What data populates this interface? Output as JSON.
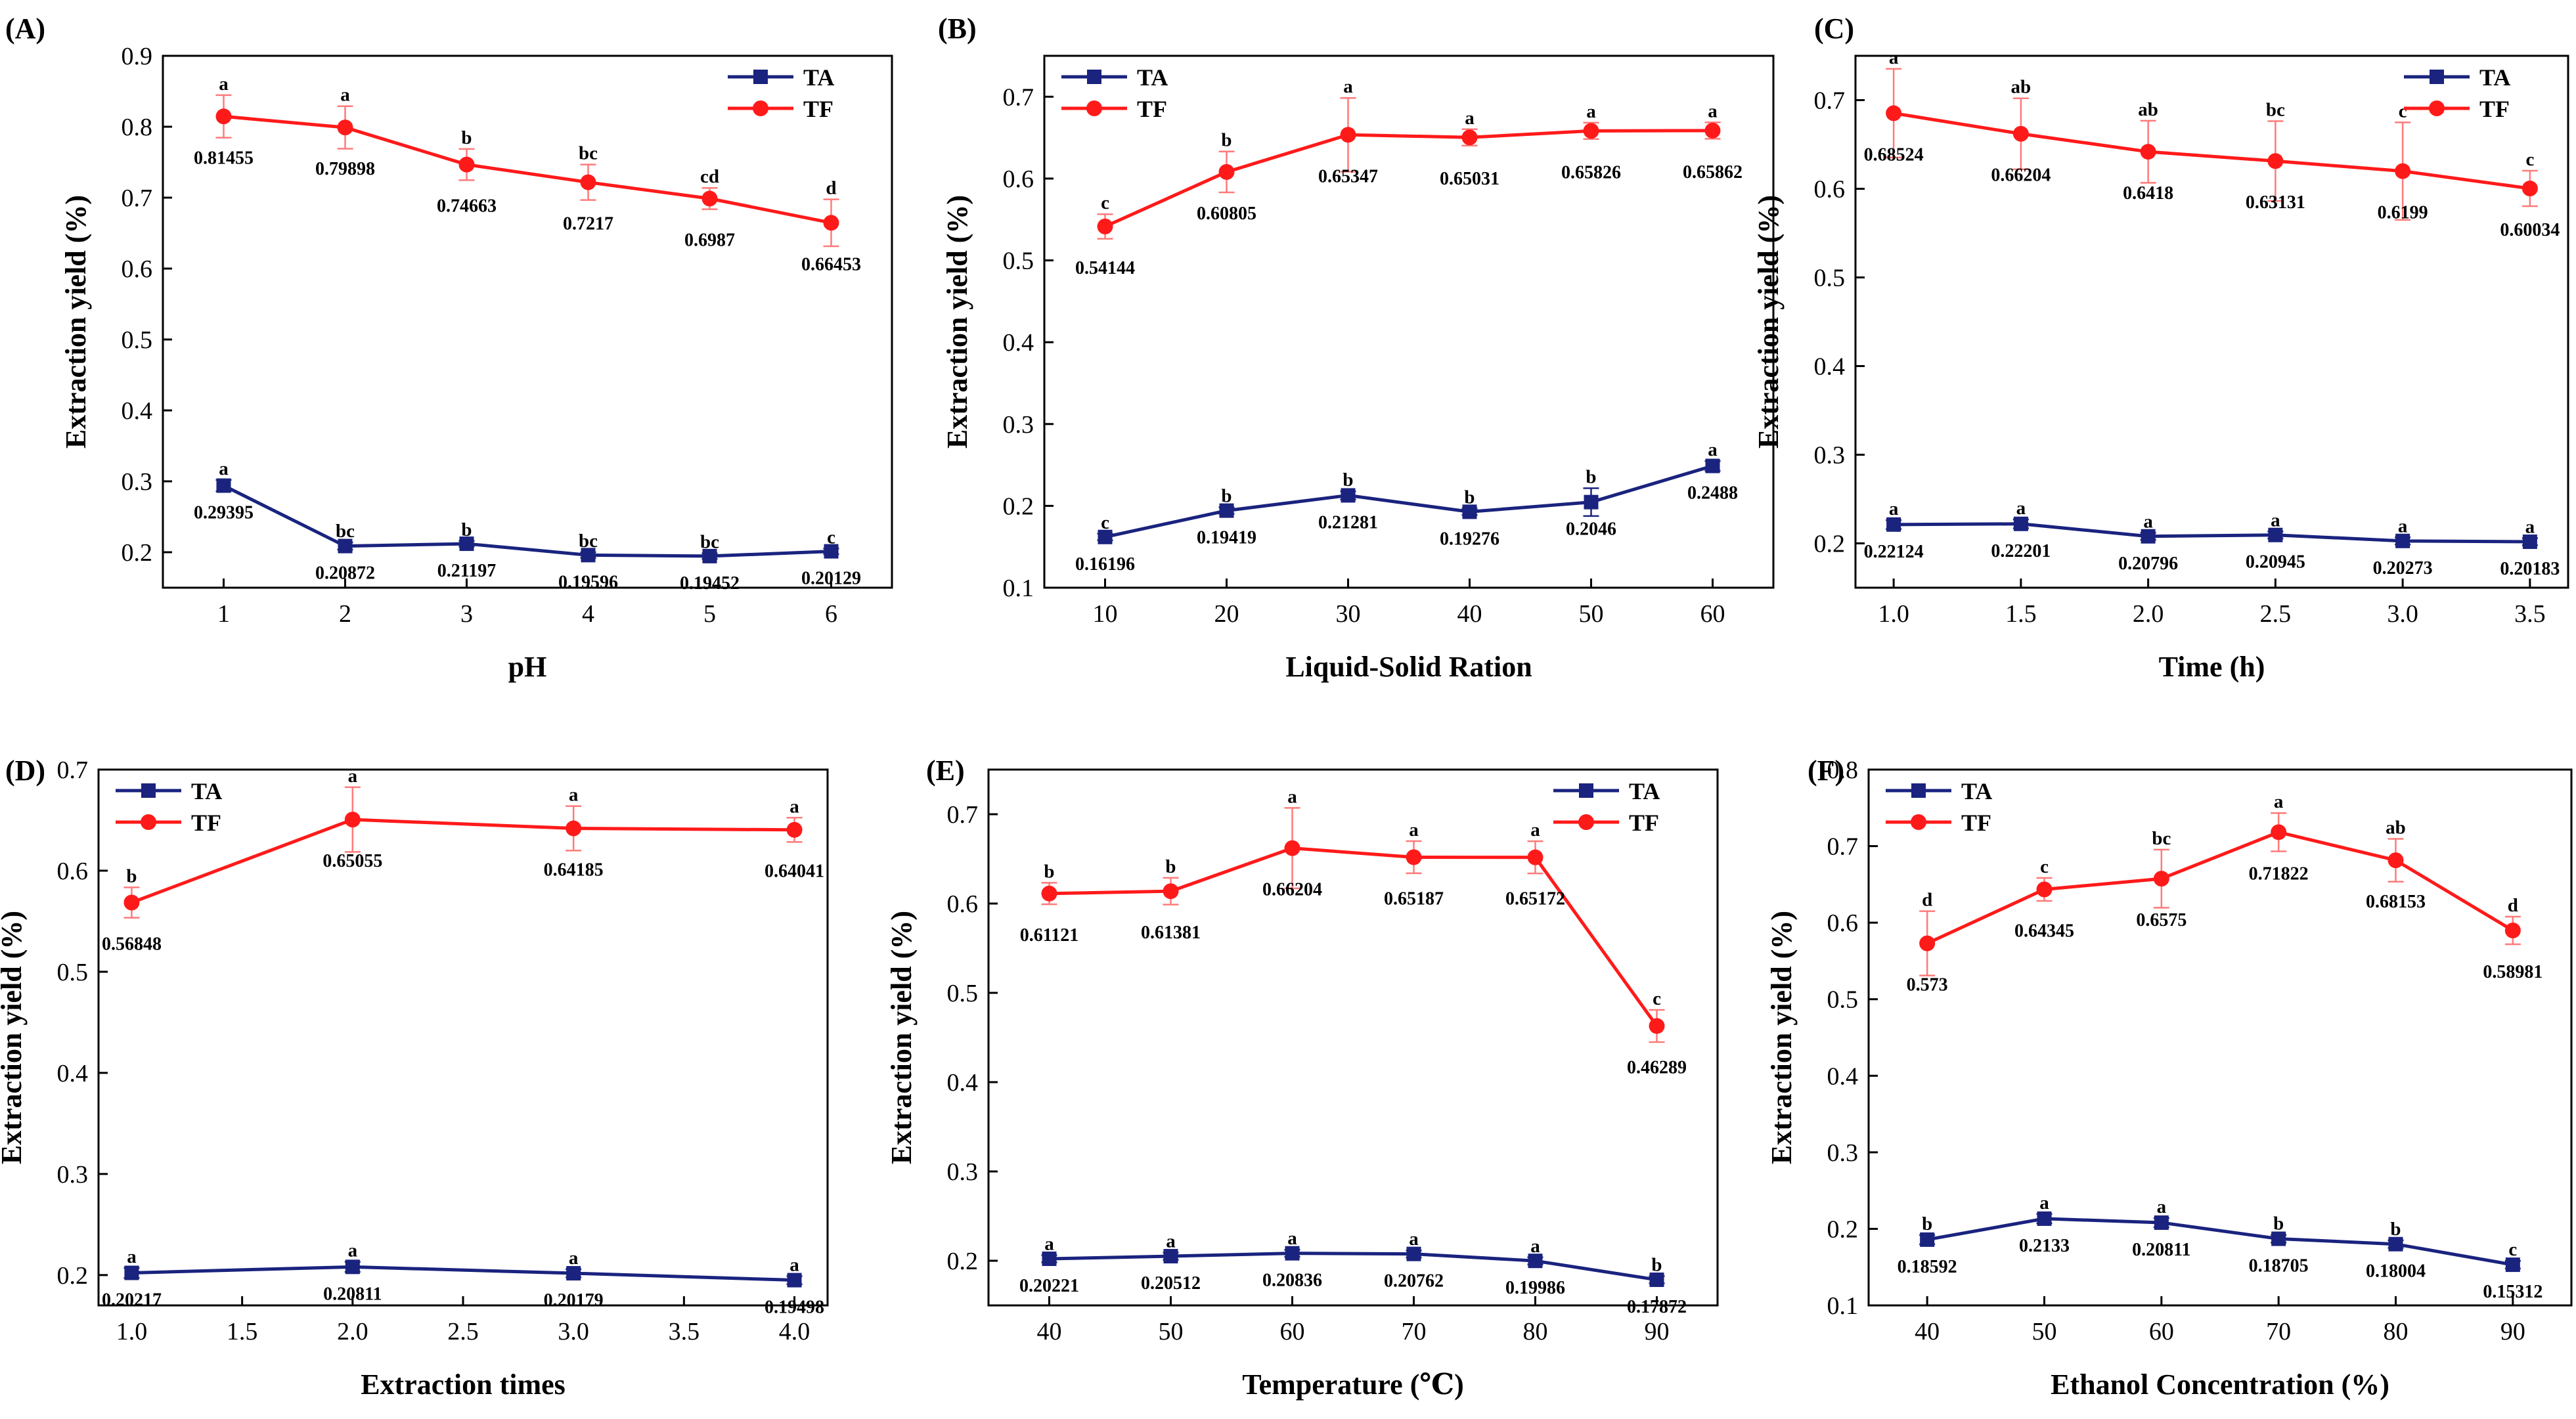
{
  "colors": {
    "TA": "#1a237e",
    "TF": "#ff1a1a",
    "TF_err": "#ff7a7a",
    "TA_err": "#1a237e",
    "axis": "#000000"
  },
  "chart_data": [
    {
      "type": "line",
      "panel": "(A)",
      "xlabel": "pH",
      "ylabel": "Extraction yield (%)",
      "xlim": [
        0.5,
        6.5
      ],
      "ylim": [
        0.15,
        0.9
      ],
      "xticks": [
        1,
        2,
        3,
        4,
        5,
        6
      ],
      "xtick_labels": [
        "1",
        "2",
        "3",
        "4",
        "5",
        "6"
      ],
      "yticks": [
        0.2,
        0.3,
        0.4,
        0.5,
        0.6,
        0.7,
        0.8,
        0.9
      ],
      "ytick_labels": [
        "0.2",
        "0.3",
        "0.4",
        "0.5",
        "0.6",
        "0.7",
        "0.8",
        "0.9"
      ],
      "legend": "top-right",
      "x": [
        1,
        2,
        3,
        4,
        5,
        6
      ],
      "series": [
        {
          "name": "TA",
          "values": [
            0.29395,
            0.20872,
            0.21197,
            0.19596,
            0.19452,
            0.20129
          ],
          "errors": [
            0.008,
            0.005,
            0.004,
            0.004,
            0.004,
            0.004
          ],
          "labels": [
            "0.29395",
            "0.20872",
            "0.21197",
            "0.19596",
            "0.19452",
            "0.20129"
          ],
          "letters": [
            "a",
            "bc",
            "b",
            "bc",
            "bc",
            "c"
          ]
        },
        {
          "name": "TF",
          "values": [
            0.81455,
            0.79898,
            0.74663,
            0.7217,
            0.6987,
            0.66453
          ],
          "errors": [
            0.03,
            0.03,
            0.022,
            0.025,
            0.015,
            0.033
          ],
          "labels": [
            "0.81455",
            "0.79898",
            "0.74663",
            "0.7217",
            "0.6987",
            "0.66453"
          ],
          "letters": [
            "a",
            "a",
            "b",
            "bc",
            "cd",
            "d"
          ]
        }
      ]
    },
    {
      "type": "line",
      "panel": "(B)",
      "xlabel": "Liquid-Solid Ration",
      "ylabel": "Extraction yield (%)",
      "xlim": [
        5,
        65
      ],
      "ylim": [
        0.1,
        0.75
      ],
      "xticks": [
        10,
        20,
        30,
        40,
        50,
        60
      ],
      "xtick_labels": [
        "10",
        "20",
        "30",
        "40",
        "50",
        "60"
      ],
      "yticks": [
        0.1,
        0.2,
        0.3,
        0.4,
        0.5,
        0.6,
        0.7
      ],
      "ytick_labels": [
        "0.1",
        "0.2",
        "0.3",
        "0.4",
        "0.5",
        "0.6",
        "0.7"
      ],
      "legend": "top-left",
      "x": [
        10,
        20,
        30,
        40,
        50,
        60
      ],
      "series": [
        {
          "name": "TA",
          "values": [
            0.16196,
            0.19419,
            0.21281,
            0.19276,
            0.2046,
            0.2488
          ],
          "errors": [
            0.004,
            0.004,
            0.005,
            0.004,
            0.017,
            0.006
          ],
          "labels": [
            "0.16196",
            "0.19419",
            "0.21281",
            "0.19276",
            "0.2046",
            "0.2488"
          ],
          "letters": [
            "c",
            "b",
            "b",
            "b",
            "b",
            "a"
          ]
        },
        {
          "name": "TF",
          "values": [
            0.54144,
            0.60805,
            0.65347,
            0.65031,
            0.65826,
            0.65862
          ],
          "errors": [
            0.015,
            0.025,
            0.045,
            0.01,
            0.01,
            0.01
          ],
          "labels": [
            "0.54144",
            "0.60805",
            "0.65347",
            "0.65031",
            "0.65826",
            "0.65862"
          ],
          "letters": [
            "c",
            "b",
            "a",
            "a",
            "a",
            "a"
          ]
        }
      ]
    },
    {
      "type": "line",
      "panel": "(C)",
      "xlabel": "Time (h)",
      "ylabel": "Extraction yield (%)",
      "xlim": [
        0.85,
        3.65
      ],
      "ylim": [
        0.15,
        0.75
      ],
      "xticks": [
        1.0,
        1.5,
        2.0,
        2.5,
        3.0,
        3.5
      ],
      "xtick_labels": [
        "1.0",
        "1.5",
        "2.0",
        "2.5",
        "3.0",
        "3.5"
      ],
      "yticks": [
        0.2,
        0.3,
        0.4,
        0.5,
        0.6,
        0.7
      ],
      "ytick_labels": [
        "0.2",
        "0.3",
        "0.4",
        "0.5",
        "0.6",
        "0.7"
      ],
      "legend": "top-right",
      "x": [
        1.0,
        1.5,
        2.0,
        2.5,
        3.0,
        3.5
      ],
      "series": [
        {
          "name": "TA",
          "values": [
            0.22124,
            0.22201,
            0.20796,
            0.20945,
            0.20273,
            0.20183
          ],
          "errors": [
            0.005,
            0.005,
            0.004,
            0.004,
            0.004,
            0.004
          ],
          "labels": [
            "0.22124",
            "0.22201",
            "0.20796",
            "0.20945",
            "0.20273",
            "0.20183"
          ],
          "letters": [
            "a",
            "a",
            "a",
            "a",
            "a",
            "a"
          ]
        },
        {
          "name": "TF",
          "values": [
            0.68524,
            0.66204,
            0.6418,
            0.63131,
            0.6199,
            0.60034
          ],
          "errors": [
            0.05,
            0.04,
            0.035,
            0.045,
            0.055,
            0.02
          ],
          "labels": [
            "0.68524",
            "0.66204",
            "0.6418",
            "0.63131",
            "0.6199",
            "0.60034"
          ],
          "letters": [
            "a",
            "ab",
            "ab",
            "bc",
            "c",
            "c"
          ]
        }
      ]
    },
    {
      "type": "line",
      "panel": "(D)",
      "xlabel": "Extraction times",
      "ylabel": "Extraction yield (%)",
      "xlim": [
        0.85,
        4.15
      ],
      "ylim": [
        0.17,
        0.7
      ],
      "xticks": [
        1.0,
        1.5,
        2.0,
        2.5,
        3.0,
        3.5,
        4.0
      ],
      "xtick_labels": [
        "1.0",
        "1.5",
        "2.0",
        "2.5",
        "3.0",
        "3.5",
        "4.0"
      ],
      "yticks": [
        0.2,
        0.3,
        0.4,
        0.5,
        0.6,
        0.7
      ],
      "ytick_labels": [
        "0.2",
        "0.3",
        "0.4",
        "0.5",
        "0.6",
        "0.7"
      ],
      "legend": "top-left",
      "x": [
        1.0,
        2.0,
        3.0,
        4.0
      ],
      "series": [
        {
          "name": "TA",
          "values": [
            0.20217,
            0.20811,
            0.20179,
            0.19498
          ],
          "errors": [
            0.005,
            0.005,
            0.004,
            0.004
          ],
          "labels": [
            "0.20217",
            "0.20811",
            "0.20179",
            "0.19498"
          ],
          "letters": [
            "a",
            "a",
            "a",
            "a"
          ]
        },
        {
          "name": "TF",
          "values": [
            0.56848,
            0.65055,
            0.64185,
            0.64041
          ],
          "errors": [
            0.015,
            0.032,
            0.022,
            0.012
          ],
          "labels": [
            "0.56848",
            "0.65055",
            "0.64185",
            "0.64041"
          ],
          "letters": [
            "b",
            "a",
            "a",
            "a"
          ]
        }
      ]
    },
    {
      "type": "line",
      "panel": "(E)",
      "xlabel": "Temperature (℃)",
      "ylabel": "Extraction yield (%)",
      "xlim": [
        35,
        95
      ],
      "ylim": [
        0.15,
        0.75
      ],
      "xticks": [
        40,
        50,
        60,
        70,
        80,
        90
      ],
      "xtick_labels": [
        "40",
        "50",
        "60",
        "70",
        "80",
        "90"
      ],
      "yticks": [
        0.2,
        0.3,
        0.4,
        0.5,
        0.6,
        0.7
      ],
      "ytick_labels": [
        "0.2",
        "0.3",
        "0.4",
        "0.5",
        "0.6",
        "0.7"
      ],
      "legend": "top-right",
      "x": [
        40,
        50,
        60,
        70,
        80,
        90
      ],
      "series": [
        {
          "name": "TA",
          "values": [
            0.20221,
            0.20512,
            0.20836,
            0.20762,
            0.19986,
            0.17872
          ],
          "errors": [
            0.004,
            0.004,
            0.004,
            0.004,
            0.004,
            0.004
          ],
          "labels": [
            "0.20221",
            "0.20512",
            "0.20836",
            "0.20762",
            "0.19986",
            "0.17872"
          ],
          "letters": [
            "a",
            "a",
            "a",
            "a",
            "a",
            "b"
          ]
        },
        {
          "name": "TF",
          "values": [
            0.61121,
            0.61381,
            0.66204,
            0.65187,
            0.65172,
            0.46289
          ],
          "errors": [
            0.012,
            0.015,
            0.045,
            0.018,
            0.018,
            0.018
          ],
          "labels": [
            "0.61121",
            "0.61381",
            "0.66204",
            "0.65187",
            "0.65172",
            "0.46289"
          ],
          "letters": [
            "b",
            "b",
            "a",
            "a",
            "a",
            "c"
          ]
        }
      ]
    },
    {
      "type": "line",
      "panel": "(F)",
      "xlabel": "Ethanol Concentration (%)",
      "ylabel": "Extraction yield (%)",
      "xlim": [
        35,
        95
      ],
      "ylim": [
        0.1,
        0.8
      ],
      "xticks": [
        40,
        50,
        60,
        70,
        80,
        90
      ],
      "xtick_labels": [
        "40",
        "50",
        "60",
        "70",
        "80",
        "90"
      ],
      "yticks": [
        0.1,
        0.2,
        0.3,
        0.4,
        0.5,
        0.6,
        0.7,
        0.8
      ],
      "ytick_labels": [
        "0.1",
        "0.2",
        "0.3",
        "0.4",
        "0.5",
        "0.6",
        "0.7",
        "0.8"
      ],
      "legend": "top-left",
      "x": [
        40,
        50,
        60,
        70,
        80,
        90
      ],
      "series": [
        {
          "name": "TA",
          "values": [
            0.18592,
            0.2133,
            0.20811,
            0.18705,
            0.18004,
            0.15312
          ],
          "errors": [
            0.006,
            0.006,
            0.006,
            0.005,
            0.005,
            0.005
          ],
          "labels": [
            "0.18592",
            "0.2133",
            "0.20811",
            "0.18705",
            "0.18004",
            "0.15312"
          ],
          "letters": [
            "b",
            "a",
            "a",
            "b",
            "b",
            "c"
          ]
        },
        {
          "name": "TF",
          "values": [
            0.573,
            0.64345,
            0.6575,
            0.71822,
            0.68153,
            0.58981
          ],
          "errors": [
            0.042,
            0.015,
            0.038,
            0.025,
            0.028,
            0.018
          ],
          "labels": [
            "0.573",
            "0.64345",
            "0.6575",
            "0.71822",
            "0.68153",
            "0.58981"
          ],
          "letters": [
            "d",
            "c",
            "bc",
            "a",
            "ab",
            "d"
          ]
        }
      ]
    }
  ]
}
